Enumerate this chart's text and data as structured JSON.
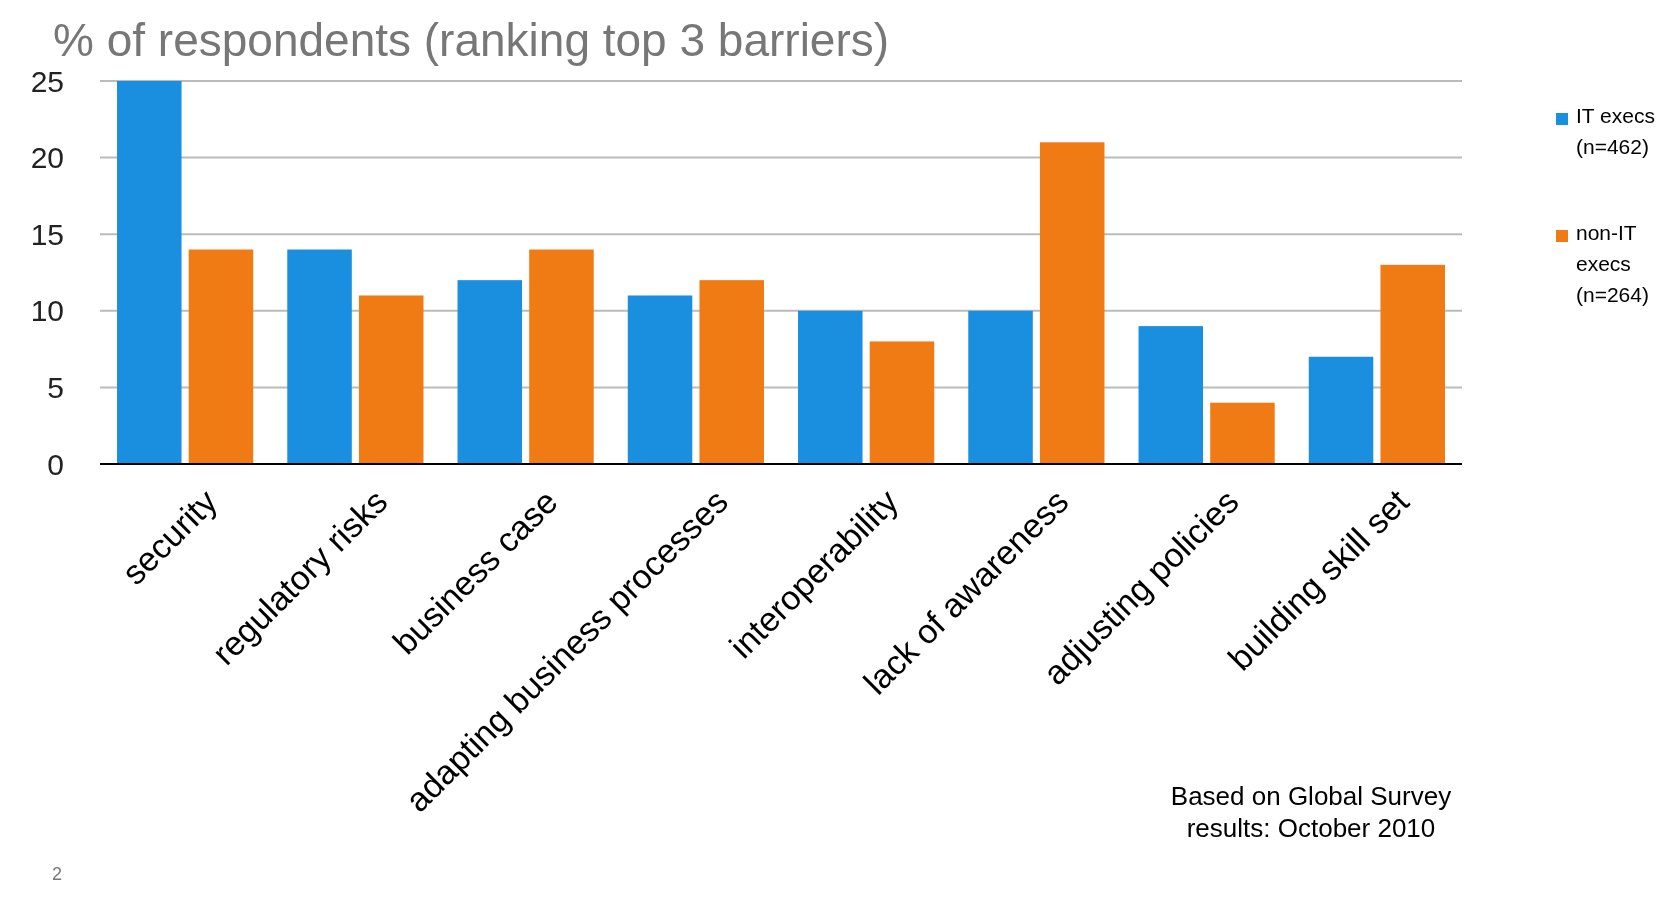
{
  "chart_data": {
    "type": "bar",
    "title": "% of respondents (ranking top 3 barriers)",
    "categories": [
      "security",
      "regulatory risks",
      "business case",
      "adapting business processes",
      "interoperability",
      "lack of awareness",
      "adjusting policies",
      "building skill set"
    ],
    "series": [
      {
        "name": "IT execs (n=462)",
        "color": "#1a8fe0",
        "values": [
          25,
          14,
          12,
          11,
          10,
          10,
          9,
          7
        ]
      },
      {
        "name": "non-IT execs (n=264)",
        "color": "#f07a14",
        "values": [
          14,
          11,
          14,
          12,
          8,
          21,
          4,
          13
        ]
      }
    ],
    "ylim": [
      0,
      25
    ],
    "yticks": [
      0,
      5,
      10,
      15,
      20,
      25
    ],
    "grid": "y",
    "legend": "right",
    "annotations": [
      "Based on Global Survey results: October 2010",
      "2"
    ]
  }
}
